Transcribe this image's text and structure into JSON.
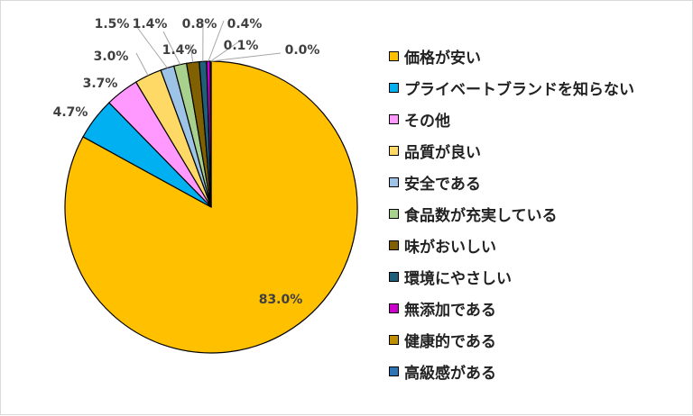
{
  "chart_data": {
    "type": "pie",
    "title": "",
    "legend_position": "right",
    "start_angle_deg": 0,
    "direction": "clockwise",
    "slices": [
      {
        "name": "価格が安い",
        "value": 83.0,
        "label": "83.0%",
        "color": "#FFC000"
      },
      {
        "name": "プライベートブランドを知らない",
        "value": 4.7,
        "label": "4.7%",
        "color": "#00B0F0"
      },
      {
        "name": "その他",
        "value": 3.7,
        "label": "3.7%",
        "color": "#FF99FF"
      },
      {
        "name": "品質が良い",
        "value": 3.0,
        "label": "3.0%",
        "color": "#FFD966"
      },
      {
        "name": "安全である",
        "value": 1.5,
        "label": "1.5%",
        "color": "#9DC3E6"
      },
      {
        "name": "食品数が充実している",
        "value": 1.4,
        "label": "1.4%",
        "color": "#A9D18E"
      },
      {
        "name": "味がおいしい",
        "value": 1.4,
        "label": "1.4%",
        "color": "#806000"
      },
      {
        "name": "環境にやさしい",
        "value": 0.8,
        "label": "0.8%",
        "color": "#1F5F7A"
      },
      {
        "name": "無添加である",
        "value": 0.4,
        "label": "0.4%",
        "color": "#CC00CC"
      },
      {
        "name": "健康的である",
        "value": 0.1,
        "label": "0.1%",
        "color": "#BF8F00"
      },
      {
        "name": "高級感がある",
        "value": 0.0,
        "label": "0.0%",
        "color": "#2E75B6"
      }
    ]
  }
}
